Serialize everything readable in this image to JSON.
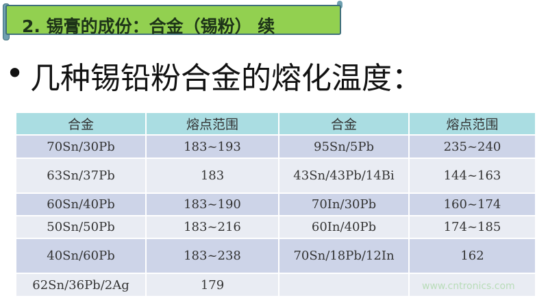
{
  "banner": {
    "title": "2. 锡膏的成份：合金（锡粉） 续"
  },
  "heading": {
    "bullet": "•",
    "text": "几种锡铅粉合金的熔化温度："
  },
  "table": {
    "headers": [
      "合金",
      "熔点范围",
      "合金",
      "熔点范围"
    ],
    "rows": [
      [
        "70Sn/30Pb",
        "183~193",
        "95Sn/5Pb",
        "235~240"
      ],
      [
        "63Sn/37Pb",
        "183",
        "43Sn/43Pb/14Bi",
        "144~163"
      ],
      [
        "60Sn/40Pb",
        "183~190",
        "70In/30Pb",
        "160~174"
      ],
      [
        "50Sn/50Pb",
        "183~216",
        "60In/40Pb",
        "174~185"
      ],
      [
        "40Sn/60Pb",
        "183~238",
        "70Sn/18Pb/12In",
        "162"
      ],
      [
        "62Sn/36Pb/2Ag",
        "179",
        "",
        ""
      ]
    ]
  },
  "watermark": "www.cntronics.com"
}
